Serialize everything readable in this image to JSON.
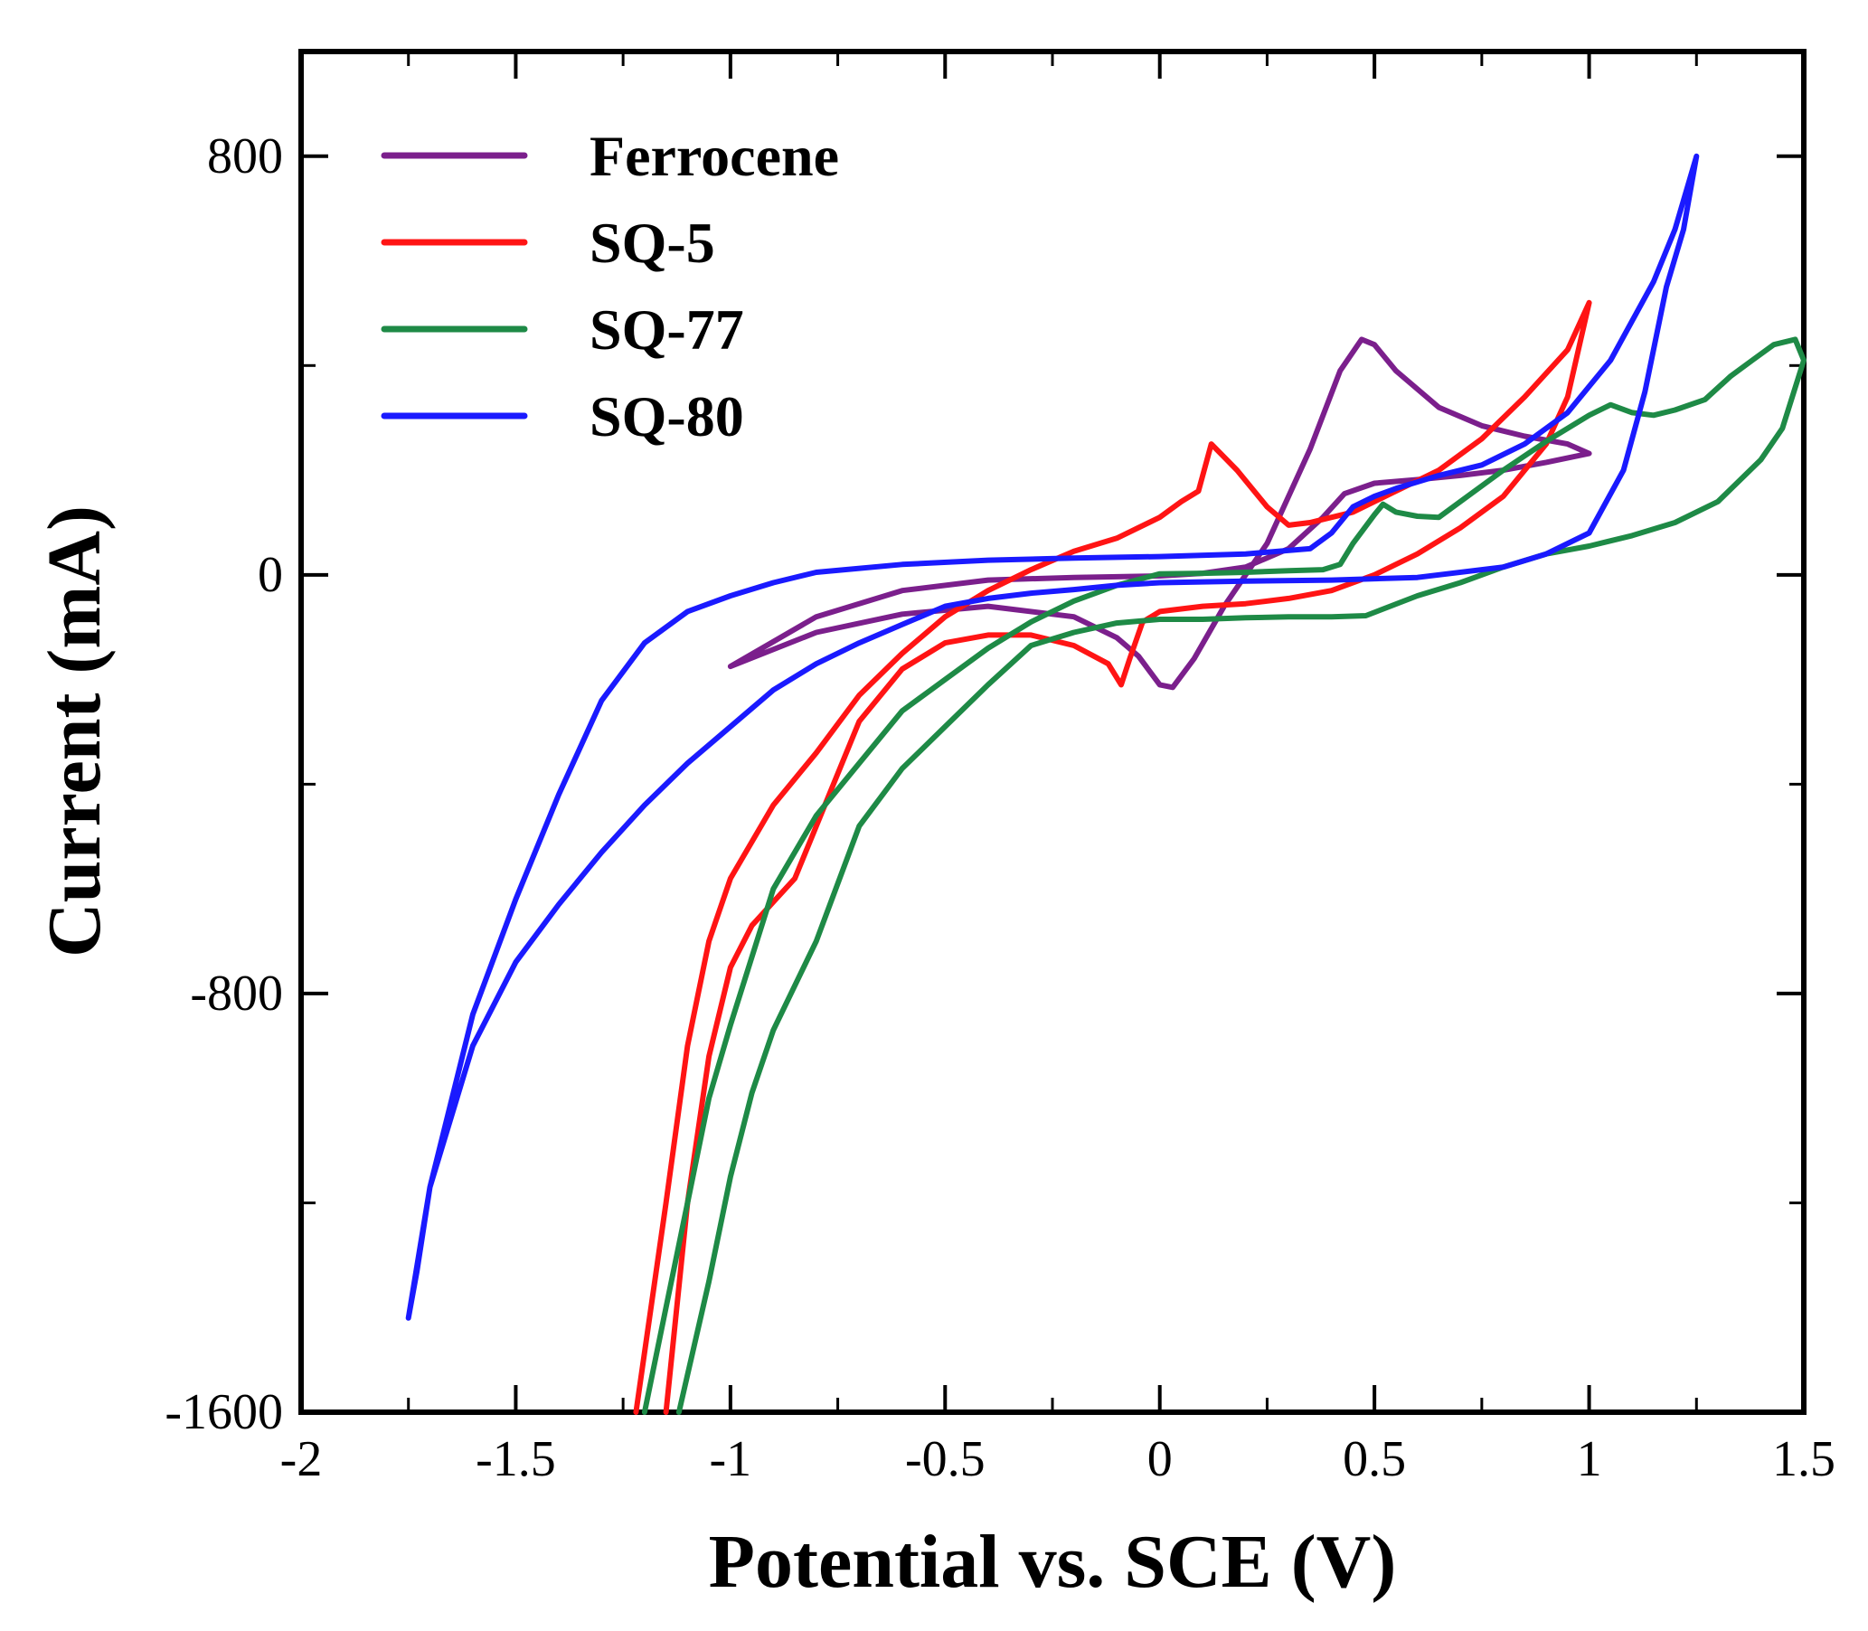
{
  "chart_data": {
    "type": "line",
    "title": "",
    "xlabel": "Potential vs. SCE (V)",
    "ylabel": "Current (mA)",
    "xlim": [
      -2,
      1.5
    ],
    "ylim": [
      -1600,
      1000
    ],
    "xticks": [
      -2,
      -1.5,
      -1,
      -0.5,
      0,
      0.5,
      1,
      1.5
    ],
    "xtick_labels": [
      "-2",
      "-1.5",
      "-1",
      "-0.5",
      "0",
      "0.5",
      "1",
      "1.5"
    ],
    "yticks": [
      -1600,
      -800,
      0,
      800
    ],
    "ytick_labels": [
      "-1600",
      "-800",
      "0",
      "800"
    ],
    "y_minor_ticks": [
      -1200,
      -400,
      400
    ],
    "grid": false,
    "legend_position": "top-left",
    "series": [
      {
        "name": "Ferrocene",
        "color": "#7b1f8c",
        "points": [
          [
            -1.0,
            -175
          ],
          [
            -0.8,
            -110
          ],
          [
            -0.6,
            -75
          ],
          [
            -0.4,
            -60
          ],
          [
            -0.2,
            -80
          ],
          [
            -0.1,
            -120
          ],
          [
            -0.05,
            -155
          ],
          [
            0.0,
            -210
          ],
          [
            0.03,
            -215
          ],
          [
            0.08,
            -160
          ],
          [
            0.15,
            -60
          ],
          [
            0.25,
            60
          ],
          [
            0.35,
            240
          ],
          [
            0.42,
            390
          ],
          [
            0.47,
            450
          ],
          [
            0.5,
            440
          ],
          [
            0.55,
            390
          ],
          [
            0.65,
            320
          ],
          [
            0.75,
            285
          ],
          [
            0.85,
            265
          ],
          [
            0.95,
            250
          ],
          [
            1.0,
            232
          ],
          [
            0.9,
            215
          ],
          [
            0.8,
            200
          ],
          [
            0.7,
            190
          ],
          [
            0.6,
            182
          ],
          [
            0.5,
            175
          ],
          [
            0.43,
            155
          ],
          [
            0.38,
            110
          ],
          [
            0.3,
            50
          ],
          [
            0.2,
            15
          ],
          [
            0.1,
            3
          ],
          [
            0.0,
            -2
          ],
          [
            -0.2,
            -5
          ],
          [
            -0.4,
            -10
          ],
          [
            -0.6,
            -30
          ],
          [
            -0.8,
            -80
          ],
          [
            -1.0,
            -175
          ]
        ]
      },
      {
        "name": "SQ-5",
        "color": "#ff1414",
        "points": [
          [
            -1.15,
            -1600
          ],
          [
            -1.1,
            -1200
          ],
          [
            -1.05,
            -920
          ],
          [
            -1.0,
            -750
          ],
          [
            -0.95,
            -670
          ],
          [
            -0.9,
            -625
          ],
          [
            -0.85,
            -580
          ],
          [
            -0.8,
            -480
          ],
          [
            -0.7,
            -280
          ],
          [
            -0.6,
            -180
          ],
          [
            -0.5,
            -130
          ],
          [
            -0.4,
            -115
          ],
          [
            -0.3,
            -115
          ],
          [
            -0.2,
            -135
          ],
          [
            -0.12,
            -170
          ],
          [
            -0.09,
            -210
          ],
          [
            -0.07,
            -160
          ],
          [
            -0.04,
            -90
          ],
          [
            0.0,
            -70
          ],
          [
            0.1,
            -60
          ],
          [
            0.2,
            -55
          ],
          [
            0.3,
            -45
          ],
          [
            0.4,
            -30
          ],
          [
            0.5,
            0
          ],
          [
            0.6,
            40
          ],
          [
            0.7,
            90
          ],
          [
            0.8,
            150
          ],
          [
            0.9,
            250
          ],
          [
            0.95,
            340
          ],
          [
            1.0,
            520
          ],
          [
            0.95,
            430
          ],
          [
            0.85,
            340
          ],
          [
            0.75,
            260
          ],
          [
            0.65,
            200
          ],
          [
            0.55,
            160
          ],
          [
            0.5,
            140
          ],
          [
            0.45,
            120
          ],
          [
            0.4,
            110
          ],
          [
            0.35,
            100
          ],
          [
            0.3,
            95
          ],
          [
            0.25,
            130
          ],
          [
            0.18,
            200
          ],
          [
            0.12,
            250
          ],
          [
            0.09,
            160
          ],
          [
            0.05,
            140
          ],
          [
            0.0,
            110
          ],
          [
            -0.1,
            70
          ],
          [
            -0.2,
            45
          ],
          [
            -0.3,
            10
          ],
          [
            -0.4,
            -30
          ],
          [
            -0.5,
            -80
          ],
          [
            -0.6,
            -150
          ],
          [
            -0.7,
            -230
          ],
          [
            -0.8,
            -340
          ],
          [
            -0.9,
            -440
          ],
          [
            -1.0,
            -580
          ],
          [
            -1.05,
            -700
          ],
          [
            -1.1,
            -900
          ],
          [
            -1.15,
            -1200
          ],
          [
            -1.22,
            -1600
          ]
        ]
      },
      {
        "name": "SQ-77",
        "color": "#1e8a46",
        "points": [
          [
            -1.12,
            -1600
          ],
          [
            -1.05,
            -1350
          ],
          [
            -1.0,
            -1150
          ],
          [
            -0.95,
            -990
          ],
          [
            -0.9,
            -870
          ],
          [
            -0.8,
            -700
          ],
          [
            -0.7,
            -480
          ],
          [
            -0.6,
            -370
          ],
          [
            -0.5,
            -290
          ],
          [
            -0.4,
            -210
          ],
          [
            -0.3,
            -135
          ],
          [
            -0.2,
            -110
          ],
          [
            -0.1,
            -92
          ],
          [
            0.0,
            -85
          ],
          [
            0.1,
            -85
          ],
          [
            0.2,
            -82
          ],
          [
            0.3,
            -80
          ],
          [
            0.4,
            -80
          ],
          [
            0.48,
            -78
          ],
          [
            0.6,
            -40
          ],
          [
            0.7,
            -15
          ],
          [
            0.8,
            15
          ],
          [
            0.9,
            40
          ],
          [
            1.0,
            55
          ],
          [
            1.1,
            75
          ],
          [
            1.2,
            100
          ],
          [
            1.3,
            140
          ],
          [
            1.4,
            220
          ],
          [
            1.45,
            280
          ],
          [
            1.5,
            410
          ],
          [
            1.48,
            450
          ],
          [
            1.43,
            440
          ],
          [
            1.38,
            410
          ],
          [
            1.33,
            380
          ],
          [
            1.27,
            335
          ],
          [
            1.2,
            315
          ],
          [
            1.15,
            305
          ],
          [
            1.1,
            310
          ],
          [
            1.05,
            325
          ],
          [
            1.0,
            305
          ],
          [
            0.9,
            255
          ],
          [
            0.8,
            200
          ],
          [
            0.7,
            140
          ],
          [
            0.65,
            110
          ],
          [
            0.6,
            112
          ],
          [
            0.55,
            120
          ],
          [
            0.52,
            135
          ],
          [
            0.5,
            115
          ],
          [
            0.45,
            60
          ],
          [
            0.42,
            20
          ],
          [
            0.38,
            10
          ],
          [
            0.3,
            8
          ],
          [
            0.2,
            5
          ],
          [
            0.1,
            3
          ],
          [
            0.0,
            2
          ],
          [
            -0.1,
            -20
          ],
          [
            -0.2,
            -50
          ],
          [
            -0.3,
            -90
          ],
          [
            -0.4,
            -140
          ],
          [
            -0.5,
            -200
          ],
          [
            -0.6,
            -260
          ],
          [
            -0.7,
            -360
          ],
          [
            -0.8,
            -460
          ],
          [
            -0.9,
            -600
          ],
          [
            -1.0,
            -860
          ],
          [
            -1.05,
            -1000
          ],
          [
            -1.1,
            -1200
          ],
          [
            -1.15,
            -1400
          ],
          [
            -1.2,
            -1600
          ]
        ]
      },
      {
        "name": "SQ-80",
        "color": "#1a1aff",
        "points": [
          [
            -1.75,
            -1420
          ],
          [
            -1.7,
            -1170
          ],
          [
            -1.6,
            -900
          ],
          [
            -1.5,
            -740
          ],
          [
            -1.4,
            -630
          ],
          [
            -1.3,
            -530
          ],
          [
            -1.2,
            -440
          ],
          [
            -1.1,
            -360
          ],
          [
            -1.0,
            -290
          ],
          [
            -0.9,
            -220
          ],
          [
            -0.8,
            -170
          ],
          [
            -0.7,
            -130
          ],
          [
            -0.6,
            -95
          ],
          [
            -0.5,
            -60
          ],
          [
            -0.4,
            -45
          ],
          [
            -0.3,
            -35
          ],
          [
            -0.2,
            -28
          ],
          [
            -0.1,
            -20
          ],
          [
            0.0,
            -15
          ],
          [
            0.2,
            -12
          ],
          [
            0.4,
            -10
          ],
          [
            0.6,
            -5
          ],
          [
            0.8,
            15
          ],
          [
            0.9,
            40
          ],
          [
            1.0,
            80
          ],
          [
            1.08,
            200
          ],
          [
            1.13,
            350
          ],
          [
            1.18,
            550
          ],
          [
            1.22,
            660
          ],
          [
            1.25,
            800
          ],
          [
            1.2,
            660
          ],
          [
            1.15,
            560
          ],
          [
            1.05,
            410
          ],
          [
            0.95,
            310
          ],
          [
            0.85,
            250
          ],
          [
            0.75,
            210
          ],
          [
            0.65,
            190
          ],
          [
            0.55,
            165
          ],
          [
            0.5,
            150
          ],
          [
            0.45,
            130
          ],
          [
            0.4,
            80
          ],
          [
            0.35,
            50
          ],
          [
            0.2,
            40
          ],
          [
            0.0,
            35
          ],
          [
            -0.2,
            32
          ],
          [
            -0.4,
            28
          ],
          [
            -0.6,
            20
          ],
          [
            -0.8,
            5
          ],
          [
            -0.9,
            -15
          ],
          [
            -1.0,
            -40
          ],
          [
            -1.1,
            -70
          ],
          [
            -1.2,
            -130
          ],
          [
            -1.3,
            -240
          ],
          [
            -1.4,
            -420
          ],
          [
            -1.5,
            -620
          ],
          [
            -1.6,
            -840
          ],
          [
            -1.7,
            -1170
          ],
          [
            -1.73,
            -1330
          ],
          [
            -1.75,
            -1420
          ]
        ]
      }
    ]
  }
}
